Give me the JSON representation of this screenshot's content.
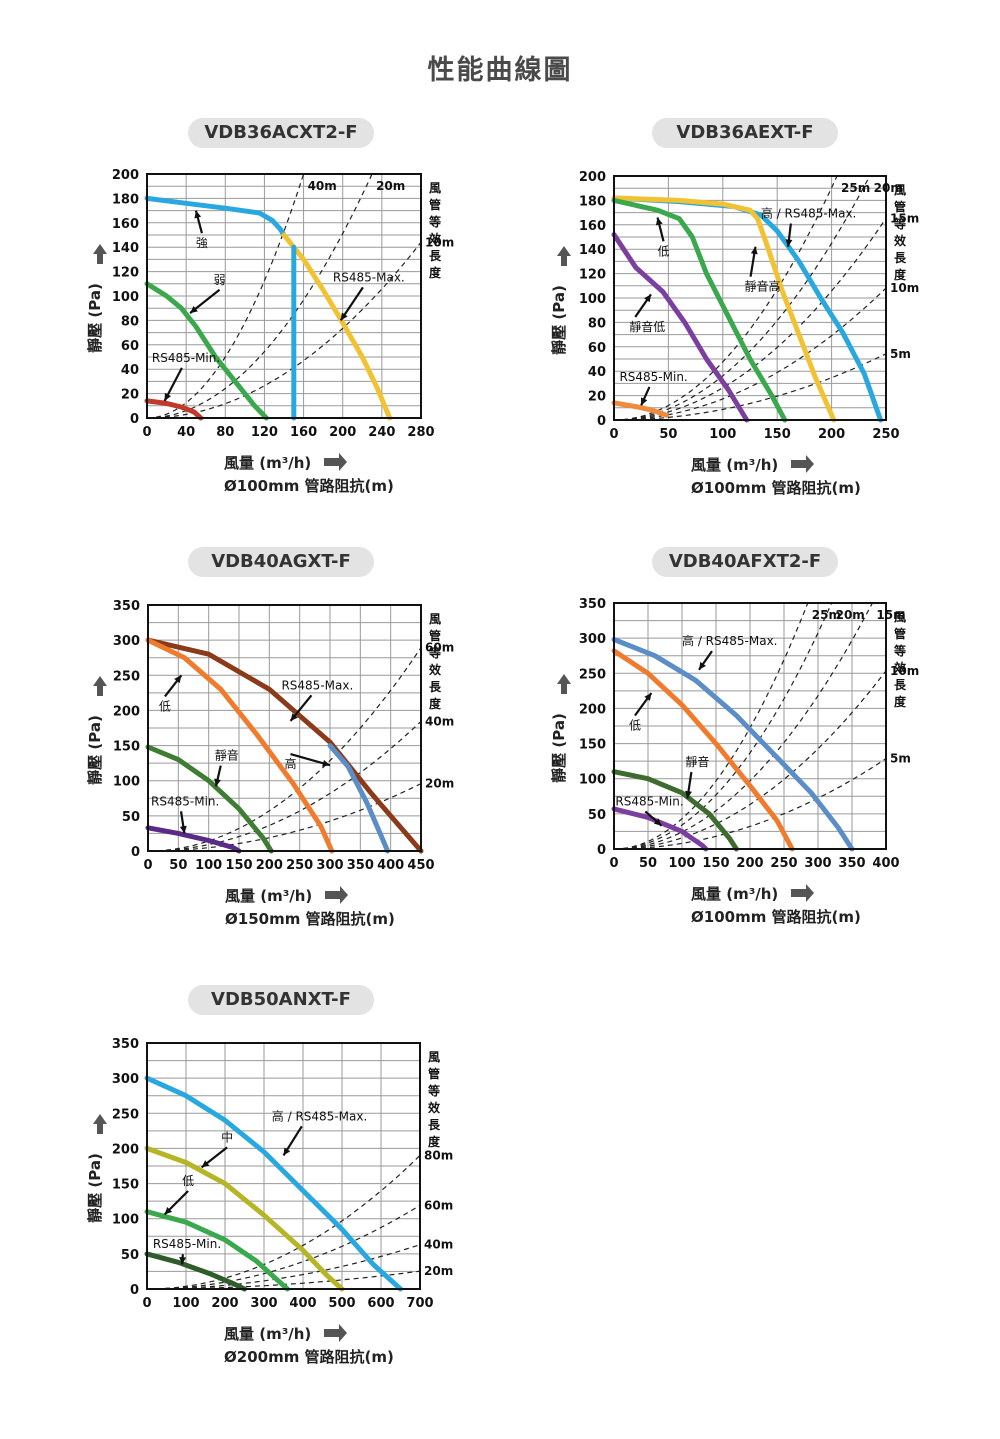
{
  "page": {
    "title": "性能曲線圖"
  },
  "chart_data": [
    {
      "type": "line",
      "model": "VDB36ACXT2-F",
      "xlabel": "風量 (m³/h)",
      "ylabel": "靜壓 (Pa)",
      "duct_note": "Ø100mm 管路阻抗(m)",
      "side_label": "風管等效長度",
      "xlim": [
        0,
        280
      ],
      "ylim": [
        0,
        200
      ],
      "xticks": [
        0,
        40,
        80,
        120,
        160,
        200,
        240,
        280
      ],
      "yticks": [
        0,
        20,
        40,
        60,
        80,
        100,
        120,
        140,
        160,
        180,
        200
      ],
      "series": [
        {
          "name": "強",
          "color": "#29a8e0",
          "points": [
            [
              0,
              180
            ],
            [
              40,
              176
            ],
            [
              80,
              172
            ],
            [
              115,
              168
            ],
            [
              128,
              162
            ],
            [
              136,
              155
            ],
            [
              140,
              150
            ]
          ]
        },
        {
          "name": "RS485-Max.",
          "color": "#f1c232",
          "points": [
            [
              140,
              150
            ],
            [
              160,
              130
            ],
            [
              180,
              105
            ],
            [
              200,
              78
            ],
            [
              220,
              50
            ],
            [
              235,
              25
            ],
            [
              248,
              0
            ]
          ]
        },
        {
          "name": "",
          "color": "#29a8e0",
          "points": [
            [
              150,
              140
            ],
            [
              150,
              0
            ]
          ]
        },
        {
          "name": "弱",
          "color": "#3aa84c",
          "points": [
            [
              0,
              110
            ],
            [
              20,
              100
            ],
            [
              35,
              90
            ],
            [
              50,
              75
            ],
            [
              70,
              50
            ],
            [
              90,
              30
            ],
            [
              110,
              10
            ],
            [
              122,
              0
            ]
          ]
        },
        {
          "name": "RS485-Min.",
          "color": "#c0392b",
          "points": [
            [
              0,
              14
            ],
            [
              20,
              12
            ],
            [
              35,
              9
            ],
            [
              48,
              5
            ],
            [
              55,
              0
            ]
          ]
        }
      ],
      "duct_lines": [
        {
          "label": "40m",
          "x_at_top": 160
        },
        {
          "label": "20m",
          "x_at_top": 230
        },
        {
          "label": "10m",
          "x_at_top": 330
        }
      ],
      "annotations": [
        {
          "text": "強",
          "x": 50,
          "y": 140,
          "ax": 50,
          "ay": 170
        },
        {
          "text": "弱",
          "x": 68,
          "y": 110,
          "ax": 44,
          "ay": 86
        },
        {
          "text": "RS485-Min.",
          "x": 5,
          "y": 46,
          "ax": 18,
          "ay": 14
        },
        {
          "text": "RS485-Max.",
          "x": 190,
          "y": 112,
          "ax": 198,
          "ay": 80
        }
      ]
    },
    {
      "type": "line",
      "model": "VDB36AEXT-F",
      "xlabel": "風量 (m³/h)",
      "ylabel": "靜壓 (Pa)",
      "duct_note": "Ø100mm 管路阻抗(m)",
      "side_label": "風管等效長度",
      "xlim": [
        0,
        250
      ],
      "ylim": [
        0,
        200
      ],
      "xticks": [
        0,
        50,
        100,
        150,
        200,
        250
      ],
      "yticks": [
        0,
        20,
        40,
        60,
        80,
        100,
        120,
        140,
        160,
        180,
        200
      ],
      "series": [
        {
          "name": "高 / RS485-Max.",
          "color": "#29a8e0",
          "points": [
            [
              0,
              182
            ],
            [
              60,
              179
            ],
            [
              110,
              175
            ],
            [
              135,
              168
            ],
            [
              150,
              155
            ],
            [
              170,
              130
            ],
            [
              190,
              100
            ],
            [
              210,
              72
            ],
            [
              230,
              38
            ],
            [
              245,
              0
            ]
          ]
        },
        {
          "name": "靜音高",
          "color": "#f1c232",
          "points": [
            [
              0,
              182
            ],
            [
              60,
              180
            ],
            [
              100,
              177
            ],
            [
              125,
              172
            ],
            [
              132,
              165
            ],
            [
              140,
              145
            ],
            [
              155,
              105
            ],
            [
              170,
              70
            ],
            [
              185,
              35
            ],
            [
              202,
              0
            ]
          ]
        },
        {
          "name": "低",
          "color": "#3aa84c",
          "points": [
            [
              0,
              180
            ],
            [
              40,
              172
            ],
            [
              60,
              165
            ],
            [
              72,
              150
            ],
            [
              85,
              120
            ],
            [
              105,
              85
            ],
            [
              125,
              50
            ],
            [
              145,
              20
            ],
            [
              157,
              0
            ]
          ]
        },
        {
          "name": "靜音低",
          "color": "#7b3fa0",
          "points": [
            [
              0,
              152
            ],
            [
              20,
              125
            ],
            [
              45,
              105
            ],
            [
              65,
              80
            ],
            [
              85,
              50
            ],
            [
              105,
              25
            ],
            [
              122,
              0
            ]
          ]
        },
        {
          "name": "RS485-Min.",
          "color": "#f08a3c",
          "points": [
            [
              0,
              14
            ],
            [
              20,
              11
            ],
            [
              35,
              8
            ],
            [
              48,
              4
            ]
          ]
        }
      ],
      "duct_lines": [
        {
          "label": "25m",
          "x_at_top": 205
        },
        {
          "label": "20m",
          "x_at_top": 235
        },
        {
          "label": "15m",
          "x_at_top": 275
        },
        {
          "label": "10m",
          "x_at_top": 340
        },
        {
          "label": "5m",
          "x_at_top": 480
        }
      ],
      "annotations": [
        {
          "text": "低",
          "x": 40,
          "y": 135,
          "ax": 40,
          "ay": 166
        },
        {
          "text": "靜音低",
          "x": 14,
          "y": 73,
          "ax": 34,
          "ay": 103
        },
        {
          "text": "RS485-Min.",
          "x": 5,
          "y": 32,
          "ax": 25,
          "ay": 12
        },
        {
          "text": "靜音高",
          "x": 120,
          "y": 106,
          "ax": 130,
          "ay": 142
        },
        {
          "text": "高 / RS485-Max.",
          "x": 135,
          "y": 166,
          "ax": 160,
          "ay": 142
        }
      ]
    },
    {
      "type": "line",
      "model": "VDB40AGXT-F",
      "xlabel": "風量 (m³/h)",
      "ylabel": "靜壓 (Pa)",
      "duct_note": "Ø150mm 管路阻抗(m)",
      "side_label": "風管等效長度",
      "xlim": [
        0,
        450
      ],
      "ylim": [
        0,
        350
      ],
      "xticks": [
        0,
        50,
        100,
        150,
        200,
        250,
        300,
        350,
        400,
        450
      ],
      "yticks": [
        0,
        50,
        100,
        150,
        200,
        250,
        300,
        350
      ],
      "series": [
        {
          "name": "RS485-Max.",
          "color": "#8b3a1a",
          "points": [
            [
              0,
              300
            ],
            [
              100,
              280
            ],
            [
              200,
              230
            ],
            [
              300,
              155
            ],
            [
              370,
              80
            ],
            [
              420,
              30
            ],
            [
              450,
              0
            ]
          ]
        },
        {
          "name": "高",
          "color": "#5b8ec6",
          "points": [
            [
              300,
              150
            ],
            [
              330,
              120
            ],
            [
              360,
              70
            ],
            [
              385,
              20
            ],
            [
              395,
              0
            ]
          ]
        },
        {
          "name": "低",
          "color": "#f07b2c",
          "points": [
            [
              0,
              300
            ],
            [
              60,
              275
            ],
            [
              120,
              230
            ],
            [
              180,
              165
            ],
            [
              240,
              95
            ],
            [
              285,
              35
            ],
            [
              303,
              0
            ]
          ]
        },
        {
          "name": "靜音",
          "color": "#3e7d33",
          "points": [
            [
              0,
              148
            ],
            [
              50,
              130
            ],
            [
              100,
              100
            ],
            [
              150,
              60
            ],
            [
              190,
              18
            ],
            [
              203,
              0
            ]
          ]
        },
        {
          "name": "RS485-Min.",
          "color": "#5b2a86",
          "points": [
            [
              0,
              33
            ],
            [
              50,
              25
            ],
            [
              100,
              15
            ],
            [
              140,
              5
            ],
            [
              150,
              0
            ]
          ]
        }
      ],
      "duct_lines": [
        {
          "label": "60m",
          "x_at_top": 495
        },
        {
          "label": "40m",
          "x_at_top": 620
        },
        {
          "label": "20m",
          "x_at_top": 860
        }
      ],
      "annotations": [
        {
          "text": "低",
          "x": 18,
          "y": 200,
          "ax": 55,
          "ay": 250
        },
        {
          "text": "靜音",
          "x": 110,
          "y": 130,
          "ax": 112,
          "ay": 92
        },
        {
          "text": "RS485-Min.",
          "x": 5,
          "y": 65,
          "ax": 60,
          "ay": 25
        },
        {
          "text": "RS485-Max.",
          "x": 220,
          "y": 230,
          "ax": 235,
          "ay": 185
        },
        {
          "text": "高",
          "x": 225,
          "y": 118,
          "ax": 300,
          "ay": 122
        }
      ]
    },
    {
      "type": "line",
      "model": "VDB40AFXT2-F",
      "xlabel": "風量 (m³/h)",
      "ylabel": "靜壓 (Pa)",
      "duct_note": "Ø100mm 管路阻抗(m)",
      "side_label": "風管等效長度",
      "xlim": [
        0,
        400
      ],
      "ylim": [
        0,
        350
      ],
      "xticks": [
        0,
        50,
        100,
        150,
        200,
        250,
        300,
        350,
        400
      ],
      "yticks": [
        0,
        50,
        100,
        150,
        200,
        250,
        300,
        350
      ],
      "series": [
        {
          "name": "高 / RS485-Max.",
          "color": "#5b8ec6",
          "points": [
            [
              0,
              298
            ],
            [
              60,
              275
            ],
            [
              120,
              240
            ],
            [
              180,
              190
            ],
            [
              240,
              130
            ],
            [
              290,
              80
            ],
            [
              330,
              30
            ],
            [
              350,
              0
            ]
          ]
        },
        {
          "name": "低",
          "color": "#f07b2c",
          "points": [
            [
              0,
              282
            ],
            [
              50,
              250
            ],
            [
              100,
              205
            ],
            [
              150,
              150
            ],
            [
              200,
              90
            ],
            [
              240,
              40
            ],
            [
              262,
              0
            ]
          ]
        },
        {
          "name": "靜音",
          "color": "#3e6b2e",
          "points": [
            [
              0,
              110
            ],
            [
              50,
              100
            ],
            [
              100,
              80
            ],
            [
              140,
              50
            ],
            [
              170,
              15
            ],
            [
              180,
              0
            ]
          ]
        },
        {
          "name": "RS485-Min.",
          "color": "#7b3fa0",
          "points": [
            [
              0,
              57
            ],
            [
              50,
              45
            ],
            [
              100,
              25
            ],
            [
              130,
              5
            ],
            [
              135,
              0
            ]
          ]
        }
      ],
      "duct_lines": [
        {
          "label": "25m",
          "x_at_top": 285
        },
        {
          "label": "20m",
          "x_at_top": 320
        },
        {
          "label": "15m",
          "x_at_top": 380
        },
        {
          "label": "10m",
          "x_at_top": 470
        },
        {
          "label": "5m",
          "x_at_top": 660
        }
      ],
      "annotations": [
        {
          "text": "高 / RS485-Max.",
          "x": 100,
          "y": 290,
          "ax": 125,
          "ay": 255
        },
        {
          "text": "低",
          "x": 22,
          "y": 170,
          "ax": 55,
          "ay": 222
        },
        {
          "text": "靜音",
          "x": 105,
          "y": 118,
          "ax": 108,
          "ay": 72
        },
        {
          "text": "RS485-Min.",
          "x": 2,
          "y": 62,
          "ax": 70,
          "ay": 33
        }
      ]
    },
    {
      "type": "line",
      "model": "VDB50ANXT-F",
      "xlabel": "風量 (m³/h)",
      "ylabel": "靜壓 (Pa)",
      "duct_note": "Ø200mm 管路阻抗(m)",
      "side_label": "風管等效長度",
      "xlim": [
        0,
        700
      ],
      "ylim": [
        0,
        350
      ],
      "xticks": [
        0,
        100,
        200,
        300,
        400,
        500,
        600,
        700
      ],
      "yticks": [
        0,
        50,
        100,
        150,
        200,
        250,
        300,
        350
      ],
      "series": [
        {
          "name": "高 / RS485-Max.",
          "color": "#29a8e0",
          "points": [
            [
              0,
              300
            ],
            [
              100,
              275
            ],
            [
              200,
              240
            ],
            [
              300,
              195
            ],
            [
              400,
              140
            ],
            [
              500,
              85
            ],
            [
              580,
              35
            ],
            [
              650,
              0
            ]
          ]
        },
        {
          "name": "中",
          "color": "#b5b526",
          "points": [
            [
              0,
              200
            ],
            [
              100,
              180
            ],
            [
              200,
              150
            ],
            [
              300,
              105
            ],
            [
              400,
              55
            ],
            [
              460,
              20
            ],
            [
              500,
              0
            ]
          ]
        },
        {
          "name": "低",
          "color": "#3aa84c",
          "points": [
            [
              0,
              110
            ],
            [
              100,
              95
            ],
            [
              200,
              70
            ],
            [
              280,
              40
            ],
            [
              340,
              10
            ],
            [
              360,
              0
            ]
          ]
        },
        {
          "name": "RS485-Min.",
          "color": "#2e5c2a",
          "points": [
            [
              0,
              50
            ],
            [
              80,
              38
            ],
            [
              160,
              22
            ],
            [
              220,
              8
            ],
            [
              250,
              0
            ]
          ]
        }
      ],
      "duct_lines": [
        {
          "label": "80m",
          "x_at_top": 950
        },
        {
          "label": "60m",
          "x_at_top": 1200
        },
        {
          "label": "40m",
          "x_at_top": 1650
        },
        {
          "label": "20m",
          "x_at_top": 2600
        }
      ],
      "annotations": [
        {
          "text": "高 / RS485-Max.",
          "x": 320,
          "y": 240,
          "ax": 350,
          "ay": 190
        },
        {
          "text": "中",
          "x": 190,
          "y": 210,
          "ax": 140,
          "ay": 173
        },
        {
          "text": "低",
          "x": 90,
          "y": 148,
          "ax": 45,
          "ay": 106
        },
        {
          "text": "RS485-Min.",
          "x": 15,
          "y": 58,
          "ax": 90,
          "ay": 35
        }
      ]
    }
  ]
}
